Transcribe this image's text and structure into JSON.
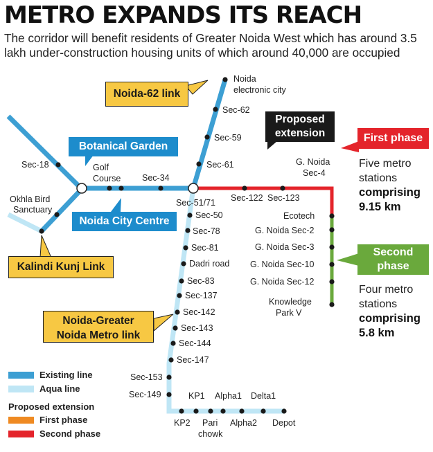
{
  "headline": "METRO EXPANDS ITS REACH",
  "subheadline": "The corridor will benefit residents of Greater Noida West which has around 3.5 lakh under-construction housing units of which around 40,000 are occupied",
  "colors": {
    "existing_line": "#3d9fd3",
    "aqua_line": "#bfe6f5",
    "first_phase": "#ef8a22",
    "second_phase": "#e4242b",
    "extension_green": "#6aa93c",
    "callout_yellow": "#f7c843",
    "callout_blue": "#1d8ccc",
    "proposed_box": "#1a1a1a"
  },
  "callouts": {
    "noida62": "Noida-62 link",
    "botanical": "Botanical Garden",
    "city_centre": "Noida City Centre",
    "kalindi": "Kalindi Kunj Link",
    "ngnm_1": "Noida-Greater",
    "ngnm_2": "Noida Metro link",
    "proposed_1": "Proposed",
    "proposed_2": "extension"
  },
  "stations": {
    "noida_ec_1": "Noida",
    "noida_ec_2": "electronic city",
    "sec62": "Sec-62",
    "sec59": "Sec-59",
    "sec61": "Sec-61",
    "sec18": "Sec-18",
    "golf_1": "Golf",
    "golf_2": "Course",
    "sec34": "Sec-34",
    "okhla_1": "Okhla Bird",
    "okhla_2": "Sanctuary",
    "sec51": "Sec-51/71",
    "sec122": "Sec-122",
    "sec123": "Sec-123",
    "gn4_1": "G. Noida",
    "gn4_2": "Sec-4",
    "ecotech": "Ecotech",
    "gn2": "G. Noida Sec-2",
    "gn3": "G. Noida Sec-3",
    "gn10": "G. Noida Sec-10",
    "gn12": "G. Noida Sec-12",
    "kp5_1": "Knowledge",
    "kp5_2": "Park V",
    "sec50": "Sec-50",
    "sec78": "Sec-78",
    "sec81": "Sec-81",
    "dadri": "Dadri road",
    "sec83": "Sec-83",
    "sec137": "Sec-137",
    "sec142": "Sec-142",
    "sec143": "Sec-143",
    "sec144": "Sec-144",
    "sec147": "Sec-147",
    "sec153": "Sec-153",
    "sec149": "Sec-149",
    "kp1": "KP1",
    "alpha1": "Alpha1",
    "delta1": "Delta1",
    "kp2": "KP2",
    "pari_1": "Pari",
    "pari_2": "chowk",
    "alpha2": "Alpha2",
    "depot": "Depot"
  },
  "first_phase": {
    "title": "First phase",
    "line1": "Five metro",
    "line2": "stations",
    "line3": "comprising",
    "line4": "9.15 km"
  },
  "second_phase": {
    "title_1": "Second",
    "title_2": "phase",
    "line1": "Four metro",
    "line2": "stations",
    "line3": "comprising",
    "line4": "5.8 km"
  },
  "legend": {
    "existing": "Existing line",
    "aqua": "Aqua line",
    "proposed_heading": "Proposed extension",
    "first": "First phase",
    "second": "Second phase"
  }
}
